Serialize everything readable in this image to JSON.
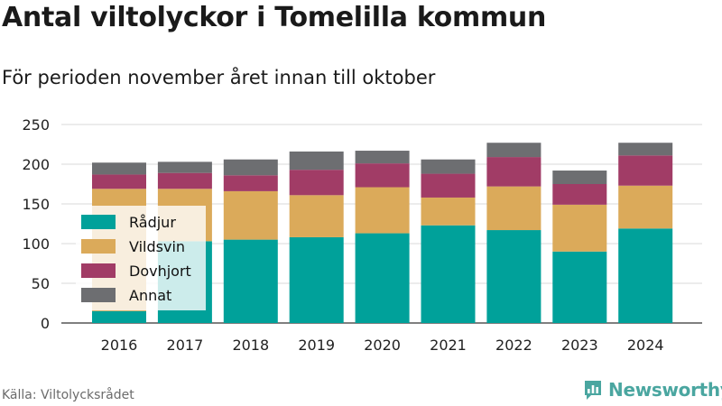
{
  "chart_data": {
    "type": "bar",
    "stacked": true,
    "title": "Antal viltolyckor i Tomelilla kommun",
    "subtitle": "För perioden november året innan till oktober",
    "categories": [
      "2016",
      "2017",
      "2018",
      "2019",
      "2020",
      "2021",
      "2022",
      "2023",
      "2024"
    ],
    "series": [
      {
        "name": "Rådjur",
        "color": "#00a19a",
        "values": [
          15,
          103,
          105,
          108,
          113,
          123,
          117,
          90,
          119
        ]
      },
      {
        "name": "Vildsvin",
        "color": "#dbaa5a",
        "values": [
          154,
          66,
          61,
          53,
          58,
          35,
          55,
          59,
          54
        ]
      },
      {
        "name": "Dovhjort",
        "color": "#a13c66",
        "values": [
          18,
          20,
          20,
          32,
          30,
          30,
          37,
          26,
          38
        ]
      },
      {
        "name": "Annat",
        "color": "#6d6e71",
        "values": [
          15,
          14,
          20,
          23,
          16,
          18,
          18,
          17,
          16
        ]
      }
    ],
    "yticks": [
      0,
      50,
      100,
      150,
      200,
      250
    ],
    "ylim": [
      0,
      250
    ],
    "xlabel": "",
    "ylabel": "",
    "grid": true,
    "legend_position": "left-middle"
  },
  "source": "Källa: Viltolycksrådet",
  "brand": "Newsworthy",
  "brand_color": "#4aa6a0"
}
